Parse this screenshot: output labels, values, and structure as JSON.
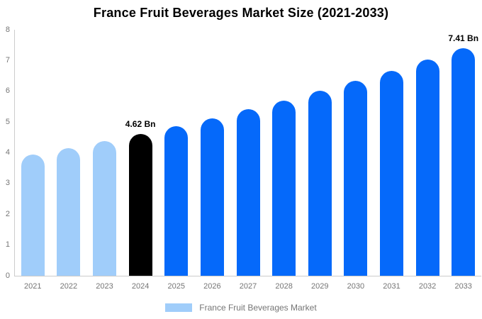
{
  "title": "France Fruit Beverages Market Size (2021-2033)",
  "chart_data": {
    "type": "bar",
    "title": "France Fruit Beverages Market Size (2021-2033)",
    "categories": [
      "2021",
      "2022",
      "2023",
      "2024",
      "2025",
      "2026",
      "2027",
      "2028",
      "2029",
      "2030",
      "2031",
      "2032",
      "2033"
    ],
    "values": [
      3.95,
      4.16,
      4.38,
      4.62,
      4.87,
      5.13,
      5.41,
      5.7,
      6.01,
      6.33,
      6.67,
      7.03,
      7.41
    ],
    "unit": "Bn",
    "bar_roles": [
      "historical",
      "historical",
      "historical",
      "base",
      "forecast",
      "forecast",
      "forecast",
      "forecast",
      "forecast",
      "forecast",
      "forecast",
      "forecast",
      "forecast"
    ],
    "colors": {
      "historical": "#A0CDFA",
      "base": "#000000",
      "forecast": "#0569FA"
    },
    "annotations": [
      {
        "index": 3,
        "text": "4.62 Bn"
      },
      {
        "index": 12,
        "text": "7.41 Bn"
      }
    ],
    "ylim": [
      0,
      8
    ],
    "yticks": [
      0,
      1,
      2,
      3,
      4,
      5,
      6,
      7,
      8
    ],
    "grid": false,
    "legend": {
      "position": "bottom",
      "label": "France Fruit Beverages Market",
      "swatch_color": "#A0CDFA"
    },
    "axis_color": "#CCCCCC",
    "tick_label_color": "#757575"
  }
}
